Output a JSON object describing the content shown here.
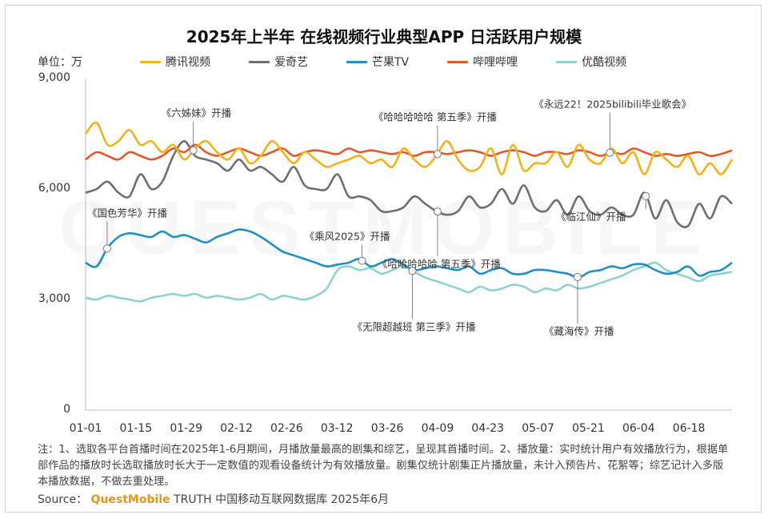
{
  "title": "2025年上半年 在线视频行业典型APP 日活跃用户规模",
  "unit_label": "单位：万",
  "watermark": "QUESTMOBILE",
  "notes": "注：1、选取各平台首播时间在2025年1-6月期间，月播放量最高的剧集和综艺，呈现其首播时间。2、播放量：实时统计用户有效播放行为，根据单部作品的播放时长选取播放时长大于一定数值的观看设备统计为有效播放量。剧集仅统计剧集正片播放量，未计入预告片、花絮等；综艺记计入多版本播放数据，不做去重处理。",
  "source": {
    "prefix": "Source：",
    "brand": "QuestMobile",
    "suffix": "TRUTH 中国移动互联网数据库 2025年6月"
  },
  "chart_data": {
    "type": "line",
    "title": "2025年上半年 在线视频行业典型APP 日活跃用户规模",
    "ylabel": "单位：万",
    "ylim": [
      0,
      9000
    ],
    "yticks": [
      0,
      3000,
      6000,
      9000
    ],
    "ytick_labels": [
      "0",
      "3,000",
      "6,000",
      "9,000"
    ],
    "x_range": [
      "01-01",
      "06-30"
    ],
    "x_start": "01-01",
    "x_step_days": 3,
    "xticks": [
      "01-01",
      "01-15",
      "01-29",
      "02-12",
      "02-26",
      "03-12",
      "03-26",
      "04-09",
      "04-23",
      "05-07",
      "05-21",
      "06-04",
      "06-18"
    ],
    "grid": false,
    "legend_position": "top",
    "series": [
      {
        "name": "腾讯视频",
        "color": "#f0b31c",
        "values": [
          7500,
          7800,
          7200,
          7300,
          7600,
          7200,
          7300,
          7000,
          7200,
          6800,
          7100,
          7300,
          7000,
          6800,
          7100,
          6700,
          6900,
          7300,
          7000,
          6700,
          7000,
          6800,
          6600,
          6700,
          6800,
          6900,
          6700,
          6800,
          6600,
          7100,
          6800,
          6600,
          6900,
          7300,
          6800,
          6500,
          6600,
          7100,
          6400,
          7200,
          6500,
          6700,
          6700,
          7000,
          6600,
          7200,
          6800,
          6700,
          7100,
          6700,
          7000,
          6400,
          7000,
          6800,
          6600,
          6900,
          6400,
          6700,
          6400,
          6800
        ]
      },
      {
        "name": "爱奇艺",
        "color": "#6f6f6f",
        "values": [
          5900,
          6000,
          6200,
          5900,
          5800,
          6400,
          6000,
          6200,
          6900,
          7300,
          6900,
          6800,
          6700,
          6500,
          6800,
          6500,
          6600,
          6400,
          6200,
          6600,
          6100,
          6000,
          6000,
          6400,
          5800,
          5800,
          5700,
          5400,
          5400,
          5500,
          5800,
          5600,
          5400,
          5300,
          5400,
          5800,
          5500,
          5600,
          6000,
          5600,
          6100,
          5500,
          5400,
          5700,
          5300,
          5800,
          5400,
          5300,
          5500,
          5300,
          5300,
          5900,
          5200,
          5700,
          5100,
          5000,
          5600,
          5200,
          5800,
          5600
        ]
      },
      {
        "name": "芒果TV",
        "color": "#1f8fc4",
        "values": [
          4000,
          3900,
          4400,
          4700,
          4800,
          4750,
          4700,
          4850,
          4700,
          4750,
          4650,
          4550,
          4700,
          4800,
          4900,
          4850,
          4700,
          4500,
          4300,
          4200,
          4100,
          4000,
          3900,
          3950,
          4000,
          4100,
          3900,
          4000,
          4100,
          3950,
          3800,
          3850,
          3900,
          3850,
          3800,
          3900,
          3700,
          3800,
          3850,
          3700,
          3700,
          3800,
          3800,
          3750,
          3700,
          3600,
          3750,
          3800,
          3900,
          3850,
          3950,
          3950,
          3800,
          3700,
          3750,
          3900,
          3650,
          3750,
          3800,
          4000
        ]
      },
      {
        "name": "哔哩哔哩",
        "color": "#e05a2b",
        "values": [
          6800,
          7000,
          6900,
          6800,
          7000,
          6900,
          6800,
          6900,
          7100,
          7000,
          7200,
          7000,
          6900,
          7000,
          7100,
          7000,
          6900,
          7000,
          7100,
          6900,
          7000,
          7050,
          7000,
          6950,
          7100,
          7000,
          7050,
          7000,
          6950,
          7000,
          6900,
          7000,
          7000,
          6950,
          7000,
          7050,
          7000,
          6900,
          7000,
          7050,
          7000,
          6900,
          7000,
          7000,
          6950,
          7050,
          7000,
          6900,
          7000,
          6950,
          7100,
          7000,
          6900,
          6950,
          6900,
          6950,
          7000,
          6900,
          6950,
          7050
        ]
      },
      {
        "name": "优酷视频",
        "color": "#8fd1ce",
        "values": [
          3050,
          3000,
          3100,
          3050,
          3000,
          2950,
          3050,
          3100,
          3150,
          3100,
          3150,
          3050,
          3100,
          3050,
          3000,
          3050,
          3150,
          3000,
          3100,
          3050,
          3000,
          3100,
          3300,
          3800,
          3900,
          3800,
          3850,
          3700,
          3800,
          3900,
          3750,
          3600,
          3500,
          3400,
          3300,
          3200,
          3350,
          3250,
          3300,
          3400,
          3350,
          3200,
          3300,
          3250,
          3400,
          3300,
          3350,
          3450,
          3550,
          3650,
          3800,
          3900,
          4000,
          3800,
          3700,
          3600,
          3500,
          3650,
          3700,
          3750
        ]
      }
    ],
    "annotations": [
      {
        "text": "《六姊妹》开播",
        "date": "01-31",
        "series": "腾讯视频"
      },
      {
        "text": "《哈哈哈哈哈 第五季》开播",
        "date": "04-09",
        "series": "腾讯视频"
      },
      {
        "text": "《永远22！2025bilibili毕业歌会》",
        "date": "05-27",
        "series": "哔哩哔哩"
      },
      {
        "text": "《国色芳华》开播",
        "date": "01-07",
        "series": "芒果TV"
      },
      {
        "text": "《乘风2025》开播",
        "date": "03-19",
        "series": "芒果TV"
      },
      {
        "text": "《哈哈哈哈哈 第五季》开播",
        "date": "04-09",
        "series": "爱奇艺"
      },
      {
        "text": "《临江仙》开播",
        "date": "06-06",
        "series": "爱奇艺"
      },
      {
        "text": "《藏海传》开播",
        "date": "05-18",
        "series": "芒果TV"
      },
      {
        "text": "《无限超越班 第三季》开播",
        "date": "04-02",
        "series": "优酷视频"
      }
    ]
  }
}
